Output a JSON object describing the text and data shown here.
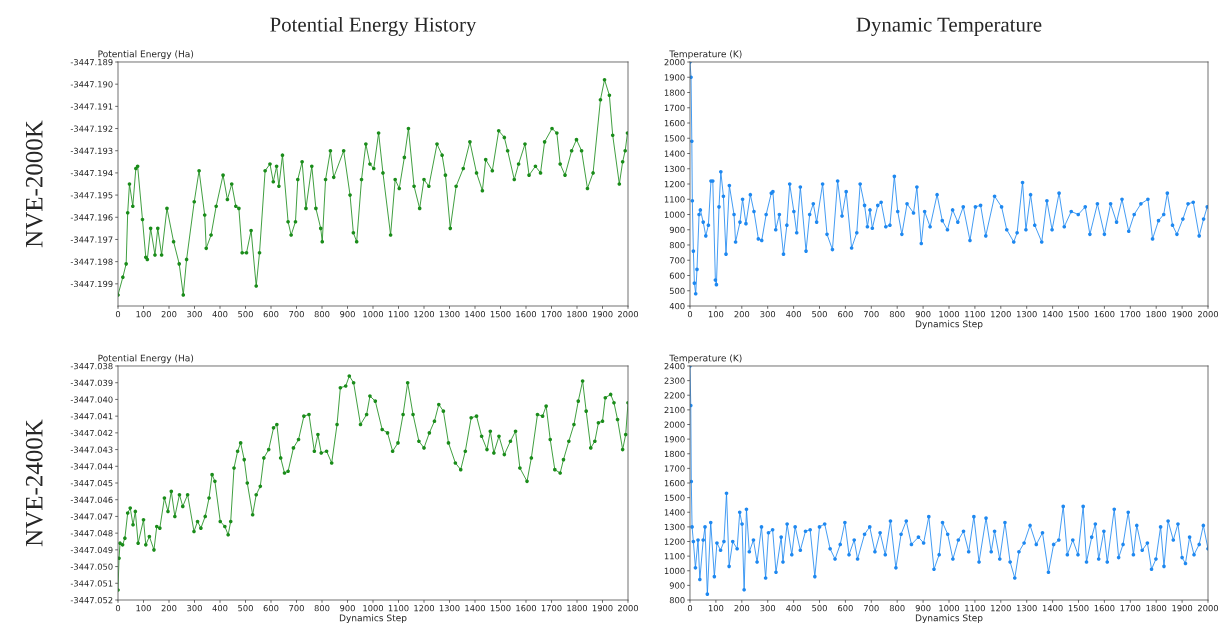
{
  "chart_data": [
    {
      "type": "line",
      "title": "Potential Energy History",
      "annotations": [
        "NVE-2000K"
      ],
      "ylabel": "Potential Energy (Ha)",
      "color": "#1a8c1a",
      "marker": "circle",
      "line_style": "solid",
      "xlim": [
        0,
        2000
      ],
      "xticks": [
        0,
        100,
        200,
        300,
        400,
        500,
        600,
        700,
        800,
        900,
        1000,
        1100,
        1200,
        1300,
        1400,
        1500,
        1600,
        1700,
        1800,
        1900,
        2000
      ],
      "ylim": [
        -3447.2,
        -3447.189
      ],
      "yticks": [
        -3447.189,
        {
          "value": -3447.19,
          "label": "-3447.190"
        },
        -3447.191,
        -3447.192,
        -3447.193,
        -3447.194,
        -3447.195,
        -3447.196,
        -3447.197,
        -3447.198,
        -3447.199
      ],
      "x": [
        0,
        19,
        32,
        38,
        45,
        58,
        70,
        77,
        96,
        109,
        115,
        128,
        145,
        156,
        171,
        192,
        218,
        240,
        256,
        269,
        299,
        318,
        340,
        346,
        365,
        385,
        412,
        429,
        446,
        462,
        474,
        487,
        504,
        522,
        542,
        555,
        577,
        596,
        609,
        622,
        631,
        645,
        667,
        679,
        696,
        705,
        722,
        737,
        760,
        776,
        795,
        801,
        814,
        833,
        846,
        885,
        910,
        923,
        936,
        955,
        972,
        988,
        1003,
        1022,
        1039,
        1069,
        1087,
        1103,
        1123,
        1139,
        1161,
        1183,
        1200,
        1219,
        1251,
        1271,
        1284,
        1303,
        1326,
        1354,
        1380,
        1406,
        1429,
        1442,
        1468,
        1493,
        1515,
        1528,
        1554,
        1571,
        1596,
        1612,
        1637,
        1657,
        1673,
        1702,
        1721,
        1734,
        1753,
        1779,
        1798,
        1818,
        1841,
        1863,
        1892,
        1908,
        1927,
        1940,
        1966,
        1979,
        1989,
        1998
      ],
      "values": [
        -3447.1995,
        -3447.1987,
        -3447.1981,
        -3447.1958,
        -3447.1945,
        -3447.1955,
        -3447.1938,
        -3447.1937,
        -3447.1961,
        -3447.1978,
        -3447.1979,
        -3447.1965,
        -3447.1977,
        -3447.1965,
        -3447.1977,
        -3447.1956,
        -3447.1971,
        -3447.1981,
        -3447.1995,
        -3447.1979,
        -3447.1953,
        -3447.1939,
        -3447.1959,
        -3447.1974,
        -3447.1968,
        -3447.1955,
        -3447.1941,
        -3447.1952,
        -3447.1945,
        -3447.1955,
        -3447.1956,
        -3447.1976,
        -3447.1976,
        -3447.1966,
        -3447.1991,
        -3447.1976,
        -3447.1939,
        -3447.1936,
        -3447.1944,
        -3447.1937,
        -3447.1946,
        -3447.1932,
        -3447.1962,
        -3447.1968,
        -3447.1962,
        -3447.1943,
        -3447.1935,
        -3447.1956,
        -3447.1937,
        -3447.1956,
        -3447.1965,
        -3447.1971,
        -3447.1943,
        -3447.193,
        -3447.1942,
        -3447.193,
        -3447.195,
        -3447.1967,
        -3447.1971,
        -3447.1943,
        -3447.1927,
        -3447.1936,
        -3447.1938,
        -3447.1922,
        -3447.194,
        -3447.1968,
        -3447.1943,
        -3447.1947,
        -3447.1933,
        -3447.192,
        -3447.1946,
        -3447.1956,
        -3447.1943,
        -3447.1946,
        -3447.1927,
        -3447.1932,
        -3447.1941,
        -3447.1965,
        -3447.1946,
        -3447.1938,
        -3447.1926,
        -3447.194,
        -3447.1948,
        -3447.1934,
        -3447.1939,
        -3447.1921,
        -3447.1924,
        -3447.193,
        -3447.1943,
        -3447.1936,
        -3447.1927,
        -3447.1941,
        -3447.1937,
        -3447.194,
        -3447.1926,
        -3447.192,
        -3447.1922,
        -3447.1936,
        -3447.1941,
        -3447.193,
        -3447.1925,
        -3447.193,
        -3447.1947,
        -3447.194,
        -3447.1907,
        -3447.1898,
        -3447.1905,
        -3447.1923,
        -3447.1945,
        -3447.1935,
        -3447.193,
        -3447.1922
      ]
    },
    {
      "type": "line",
      "title": "Dynamic Temperature",
      "xlabel": "Dynamics Step",
      "ylabel": "Temperature (K)",
      "color": "#1e88f0",
      "marker": "circle",
      "line_style": "solid",
      "xlim": [
        0,
        2000
      ],
      "xticks": [
        0,
        100,
        200,
        300,
        400,
        500,
        600,
        700,
        800,
        900,
        1000,
        1100,
        1200,
        1300,
        1400,
        1500,
        1600,
        1700,
        1800,
        1900,
        2000
      ],
      "ylim": [
        400,
        2000
      ],
      "yticks": [
        400,
        500,
        600,
        700,
        800,
        900,
        1000,
        1100,
        1200,
        1300,
        1400,
        1500,
        1600,
        1700,
        1800,
        1900,
        2000
      ],
      "x": [
        0,
        4,
        7,
        9,
        13,
        17,
        22,
        27,
        35,
        40,
        51,
        61,
        71,
        81,
        88,
        98,
        102,
        112,
        119,
        129,
        139,
        152,
        170,
        176,
        193,
        203,
        216,
        233,
        247,
        264,
        277,
        294,
        314,
        320,
        331,
        345,
        361,
        374,
        385,
        401,
        412,
        426,
        448,
        462,
        476,
        489,
        512,
        529,
        550,
        570,
        587,
        603,
        624,
        644,
        657,
        674,
        685,
        695,
        704,
        725,
        738,
        756,
        772,
        789,
        802,
        818,
        838,
        863,
        876,
        893,
        906,
        927,
        954,
        974,
        994,
        1014,
        1034,
        1055,
        1081,
        1102,
        1122,
        1142,
        1176,
        1203,
        1223,
        1250,
        1263,
        1284,
        1297,
        1315,
        1331,
        1358,
        1378,
        1398,
        1425,
        1445,
        1472,
        1499,
        1526,
        1544,
        1573,
        1600,
        1624,
        1647,
        1668,
        1694,
        1715,
        1741,
        1768,
        1786,
        1809,
        1829,
        1843,
        1863,
        1880,
        1903,
        1923,
        1943,
        1966,
        1983,
        1997
      ],
      "values": [
        2000,
        1900,
        1480,
        1090,
        760,
        550,
        480,
        640,
        1000,
        1030,
        950,
        860,
        930,
        1220,
        1220,
        570,
        540,
        1050,
        1280,
        1120,
        740,
        1190,
        1000,
        820,
        950,
        1100,
        940,
        1130,
        1020,
        840,
        830,
        1000,
        1140,
        1150,
        900,
        1000,
        740,
        930,
        1200,
        1020,
        880,
        1180,
        760,
        1000,
        1070,
        950,
        1200,
        870,
        770,
        1220,
        990,
        1150,
        780,
        880,
        1200,
        1060,
        920,
        1030,
        910,
        1060,
        1080,
        920,
        930,
        1250,
        1020,
        870,
        1070,
        1010,
        1180,
        810,
        1020,
        920,
        1130,
        960,
        900,
        1030,
        950,
        1050,
        830,
        1050,
        1060,
        860,
        1120,
        1050,
        900,
        820,
        880,
        1210,
        900,
        1130,
        930,
        820,
        1090,
        900,
        1140,
        920,
        1020,
        1000,
        1050,
        870,
        1070,
        870,
        1070,
        950,
        1100,
        890,
        1000,
        1070,
        1100,
        840,
        960,
        1000,
        1140,
        930,
        870,
        970,
        1070,
        1080,
        860,
        970,
        1050
      ]
    },
    {
      "type": "line",
      "annotations": [
        "NVE-2400K"
      ],
      "xlabel": "Dynamics Step",
      "ylabel": "Potential Energy (Ha)",
      "color": "#1a8c1a",
      "marker": "circle",
      "line_style": "solid",
      "xlim": [
        0,
        2000
      ],
      "xticks": [
        0,
        100,
        200,
        300,
        400,
        500,
        600,
        700,
        800,
        900,
        1000,
        1100,
        1200,
        1300,
        1400,
        1500,
        1600,
        1700,
        1800,
        1900,
        2000
      ],
      "ylim": [
        -3447.052,
        -3447.038
      ],
      "yticks": [
        -3447.038,
        -3447.039,
        {
          "value": -3447.04,
          "label": "-3447.040"
        },
        -3447.041,
        -3447.042,
        -3447.043,
        -3447.044,
        -3447.045,
        -3447.046,
        -3447.047,
        -3447.048,
        -3447.049,
        {
          "value": -3447.05,
          "label": "-3447.050"
        },
        -3447.051,
        -3447.052
      ],
      "x": [
        0,
        4,
        8,
        18,
        27,
        38,
        48,
        59,
        68,
        79,
        100,
        109,
        123,
        141,
        152,
        164,
        182,
        196,
        209,
        223,
        241,
        254,
        273,
        298,
        312,
        325,
        342,
        357,
        369,
        380,
        401,
        419,
        432,
        442,
        455,
        469,
        481,
        495,
        507,
        528,
        542,
        558,
        572,
        591,
        610,
        623,
        638,
        653,
        667,
        688,
        708,
        729,
        749,
        770,
        784,
        797,
        818,
        838,
        859,
        872,
        893,
        907,
        924,
        951,
        975,
        988,
        1009,
        1036,
        1057,
        1077,
        1098,
        1118,
        1136,
        1157,
        1180,
        1200,
        1221,
        1241,
        1258,
        1276,
        1296,
        1323,
        1344,
        1362,
        1385,
        1406,
        1426,
        1447,
        1460,
        1474,
        1494,
        1515,
        1539,
        1559,
        1576,
        1604,
        1621,
        1645,
        1665,
        1679,
        1695,
        1713,
        1734,
        1747,
        1768,
        1788,
        1805,
        1822,
        1836,
        1854,
        1870,
        1884,
        1900,
        1911,
        1932,
        1945,
        1959,
        1979,
        1991,
        2000
      ],
      "values": [
        -3447.0514,
        -3447.0495,
        -3447.0486,
        -3447.0487,
        -3447.0483,
        -3447.0468,
        -3447.0465,
        -3447.0475,
        -3447.0467,
        -3447.0486,
        -3447.0472,
        -3447.0487,
        -3447.0482,
        -3447.049,
        -3447.0476,
        -3447.0477,
        -3447.0459,
        -3447.0467,
        -3447.0455,
        -3447.047,
        -3447.0457,
        -3447.0464,
        -3447.0457,
        -3447.0479,
        -3447.0473,
        -3447.0477,
        -3447.047,
        -3447.0459,
        -3447.0445,
        -3447.0449,
        -3447.0473,
        -3447.0476,
        -3447.0481,
        -3447.0473,
        -3447.0441,
        -3447.0431,
        -3447.0426,
        -3447.0436,
        -3447.045,
        -3447.0469,
        -3447.0457,
        -3447.0452,
        -3447.0435,
        -3447.043,
        -3447.0417,
        -3447.0415,
        -3447.0435,
        -3447.0444,
        -3447.0443,
        -3447.0429,
        -3447.0424,
        -3447.041,
        -3447.0409,
        -3447.0431,
        -3447.0421,
        -3447.0432,
        -3447.0431,
        -3447.0438,
        -3447.0415,
        -3447.0393,
        -3447.0392,
        -3447.0386,
        -3447.039,
        -3447.0415,
        -3447.0409,
        -3447.0398,
        -3447.0401,
        -3447.0418,
        -3447.042,
        -3447.0431,
        -3447.0426,
        -3447.0409,
        -3447.039,
        -3447.0409,
        -3447.0425,
        -3447.0429,
        -3447.042,
        -3447.0413,
        -3447.0403,
        -3447.0407,
        -3447.0426,
        -3447.0438,
        -3447.0442,
        -3447.0431,
        -3447.0411,
        -3447.041,
        -3447.0422,
        -3447.043,
        -3447.0419,
        -3447.0432,
        -3447.0422,
        -3447.0433,
        -3447.0425,
        -3447.0419,
        -3447.0441,
        -3447.0449,
        -3447.0435,
        -3447.0409,
        -3447.041,
        -3447.0404,
        -3447.0424,
        -3447.0442,
        -3447.0444,
        -3447.0436,
        -3447.0425,
        -3447.0415,
        -3447.0401,
        -3447.0389,
        -3447.0407,
        -3447.0429,
        -3447.0425,
        -3447.0414,
        -3447.0413,
        -3447.0399,
        -3447.0397,
        -3447.0402,
        -3447.0412,
        -3447.043,
        -3447.0421,
        -3447.0402
      ]
    },
    {
      "type": "line",
      "xlabel": "Dynamics Step",
      "ylabel": "Temperature (K)",
      "color": "#1e88f0",
      "marker": "circle",
      "line_style": "solid",
      "xlim": [
        0,
        2000
      ],
      "xticks": [
        0,
        100,
        200,
        300,
        400,
        500,
        600,
        700,
        800,
        900,
        1000,
        1100,
        1200,
        1300,
        1400,
        1500,
        1600,
        1700,
        1800,
        1900,
        2000
      ],
      "ylim": [
        800,
        2400
      ],
      "yticks": [
        800,
        900,
        1000,
        1100,
        1200,
        1300,
        1400,
        1500,
        1600,
        1700,
        1800,
        1900,
        2000,
        2100,
        2200,
        2300,
        2400
      ],
      "x": [
        0,
        3,
        5,
        8,
        13,
        21,
        31,
        38,
        51,
        58,
        67,
        80,
        94,
        104,
        118,
        131,
        141,
        151,
        165,
        182,
        192,
        201,
        209,
        218,
        229,
        245,
        259,
        276,
        292,
        303,
        319,
        332,
        352,
        359,
        375,
        393,
        406,
        426,
        446,
        464,
        482,
        500,
        520,
        541,
        560,
        580,
        598,
        614,
        634,
        647,
        674,
        694,
        714,
        734,
        754,
        774,
        795,
        815,
        835,
        855,
        882,
        902,
        922,
        942,
        962,
        975,
        995,
        1015,
        1036,
        1056,
        1076,
        1096,
        1116,
        1143,
        1163,
        1176,
        1196,
        1216,
        1236,
        1254,
        1270,
        1290,
        1313,
        1337,
        1361,
        1384,
        1404,
        1424,
        1441,
        1457,
        1478,
        1498,
        1518,
        1531,
        1551,
        1565,
        1578,
        1598,
        1611,
        1638,
        1655,
        1672,
        1692,
        1712,
        1725,
        1746,
        1766,
        1782,
        1799,
        1817,
        1830,
        1846,
        1866,
        1884,
        1900,
        1913,
        1929,
        1946,
        1966,
        1982,
        2000
      ],
      "values": [
        2400,
        2130,
        1610,
        1300,
        1200,
        1020,
        1210,
        940,
        1210,
        1300,
        840,
        1330,
        960,
        1190,
        1140,
        1200,
        1530,
        1030,
        1200,
        1150,
        1400,
        1320,
        870,
        1420,
        1130,
        1210,
        1060,
        1300,
        950,
        1260,
        1280,
        990,
        1230,
        1060,
        1320,
        1110,
        1300,
        1140,
        1270,
        1280,
        960,
        1300,
        1320,
        1150,
        1080,
        1180,
        1330,
        1110,
        1210,
        1080,
        1250,
        1300,
        1130,
        1260,
        1110,
        1340,
        1020,
        1250,
        1340,
        1180,
        1230,
        1190,
        1370,
        1010,
        1110,
        1330,
        1250,
        1080,
        1210,
        1270,
        1130,
        1370,
        1060,
        1360,
        1130,
        1270,
        1080,
        1330,
        1060,
        950,
        1130,
        1190,
        1310,
        1180,
        1260,
        990,
        1180,
        1210,
        1440,
        1110,
        1210,
        1110,
        1440,
        1060,
        1230,
        1320,
        1080,
        1270,
        1060,
        1420,
        1090,
        1180,
        1400,
        1110,
        1310,
        1140,
        1190,
        1010,
        1080,
        1300,
        1030,
        1340,
        1210,
        1320,
        1090,
        1050,
        1230,
        1110,
        1180,
        1310,
        1150
      ]
    }
  ]
}
